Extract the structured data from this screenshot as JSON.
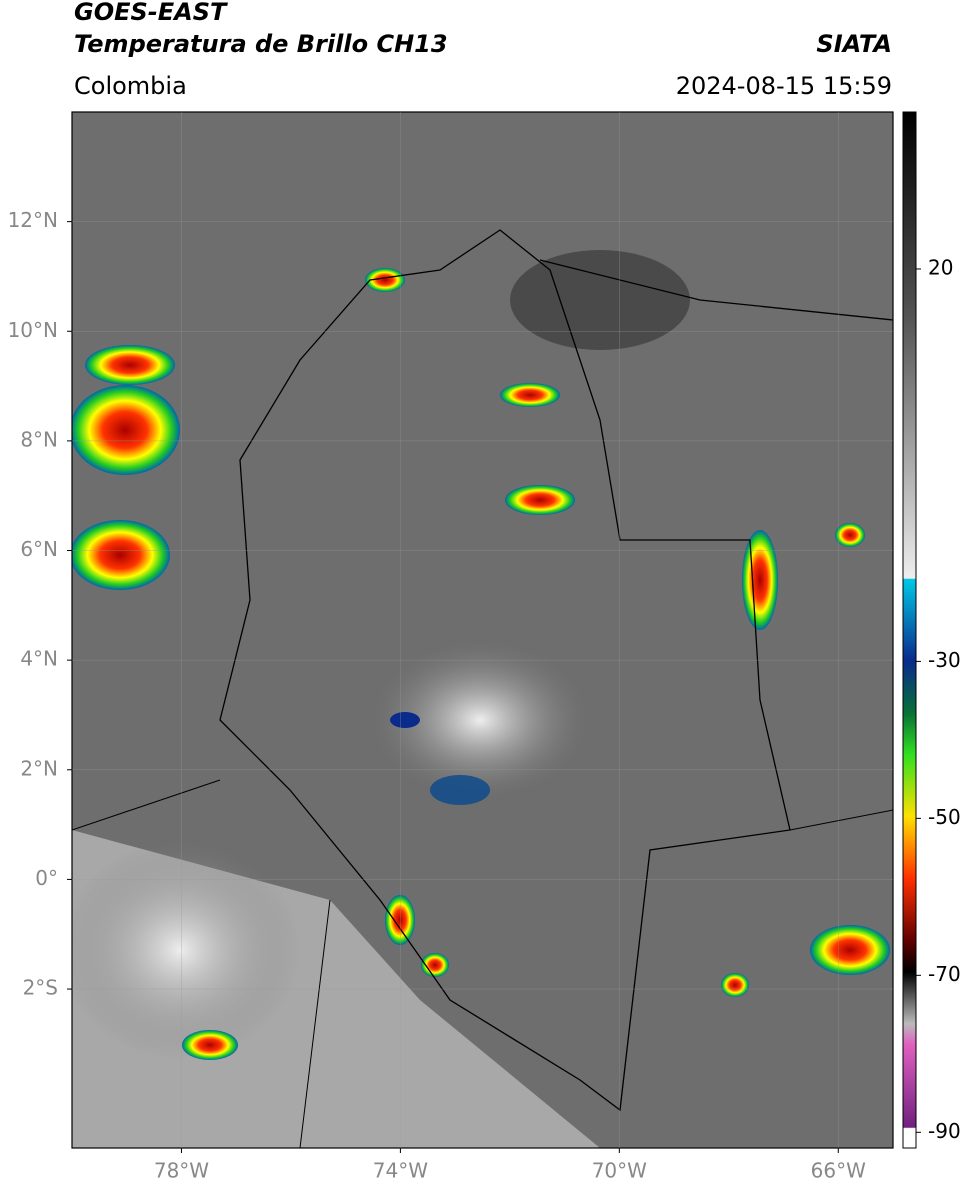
{
  "header": {
    "satellite": "GOES-EAST",
    "product": "Temperatura de Brillo CH13",
    "region": "Colombia",
    "source": "SIATA",
    "datetime": "2024-08-15 15:59"
  },
  "map": {
    "xlim": [
      -80,
      -65
    ],
    "ylim": [
      -4.9,
      14
    ],
    "xticks": [
      {
        "value": -78,
        "label": "78°W"
      },
      {
        "value": -74,
        "label": "74°W"
      },
      {
        "value": -70,
        "label": "70°W"
      },
      {
        "value": -66,
        "label": "66°W"
      }
    ],
    "yticks": [
      {
        "value": 12,
        "label": "12°N"
      },
      {
        "value": 10,
        "label": "10°N"
      },
      {
        "value": 8,
        "label": "8°N"
      },
      {
        "value": 6,
        "label": "6°N"
      },
      {
        "value": 4,
        "label": "4°N"
      },
      {
        "value": 2,
        "label": "2°N"
      },
      {
        "value": 0,
        "label": "0°"
      },
      {
        "value": -2,
        "label": "2°S"
      }
    ]
  },
  "colorbar": {
    "lim": [
      -92,
      40
    ],
    "ticks": [
      20,
      -30,
      -50,
      -70,
      -90
    ]
  }
}
